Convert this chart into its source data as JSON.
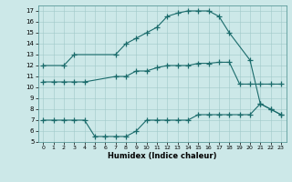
{
  "xlabel": "Humidex (Indice chaleur)",
  "bg_color": "#cce8e8",
  "line_color": "#1a6b6b",
  "grid_color": "#a0c8c8",
  "xlim": [
    -0.5,
    23.5
  ],
  "ylim": [
    5,
    17.5
  ],
  "xticks": [
    0,
    1,
    2,
    3,
    4,
    5,
    6,
    7,
    8,
    9,
    10,
    11,
    12,
    13,
    14,
    15,
    16,
    17,
    18,
    19,
    20,
    21,
    22,
    23
  ],
  "yticks": [
    5,
    6,
    7,
    8,
    9,
    10,
    11,
    12,
    13,
    14,
    15,
    16,
    17
  ],
  "curve1_x": [
    0,
    2,
    3,
    7,
    8,
    9,
    10,
    11,
    12,
    13,
    14,
    15,
    16,
    17,
    18,
    20,
    21,
    22,
    23
  ],
  "curve1_y": [
    12,
    12,
    13,
    13,
    14,
    14.5,
    15.0,
    15.5,
    16.5,
    16.8,
    17.0,
    17.0,
    17.0,
    16.5,
    15.0,
    12.5,
    8.5,
    8.0,
    7.5
  ],
  "curve2_x": [
    0,
    1,
    2,
    3,
    4,
    7,
    8,
    9,
    10,
    11,
    12,
    13,
    14,
    15,
    16,
    17,
    18,
    19,
    20,
    21,
    22,
    23
  ],
  "curve2_y": [
    10.5,
    10.5,
    10.5,
    10.5,
    10.5,
    11.0,
    11.0,
    11.5,
    11.5,
    11.8,
    12.0,
    12.0,
    12.0,
    12.2,
    12.2,
    12.3,
    12.3,
    10.3,
    10.3,
    10.3,
    10.3,
    10.3
  ],
  "curve3_x": [
    0,
    1,
    2,
    3,
    4,
    5,
    6,
    7,
    8,
    9,
    10,
    11,
    12,
    13,
    14,
    15,
    16,
    17,
    18,
    19,
    20,
    21,
    22,
    23
  ],
  "curve3_y": [
    7.0,
    7.0,
    7.0,
    7.0,
    7.0,
    5.5,
    5.5,
    5.5,
    5.5,
    6.0,
    7.0,
    7.0,
    7.0,
    7.0,
    7.0,
    7.5,
    7.5,
    7.5,
    7.5,
    7.5,
    7.5,
    8.5,
    8.0,
    7.5
  ]
}
